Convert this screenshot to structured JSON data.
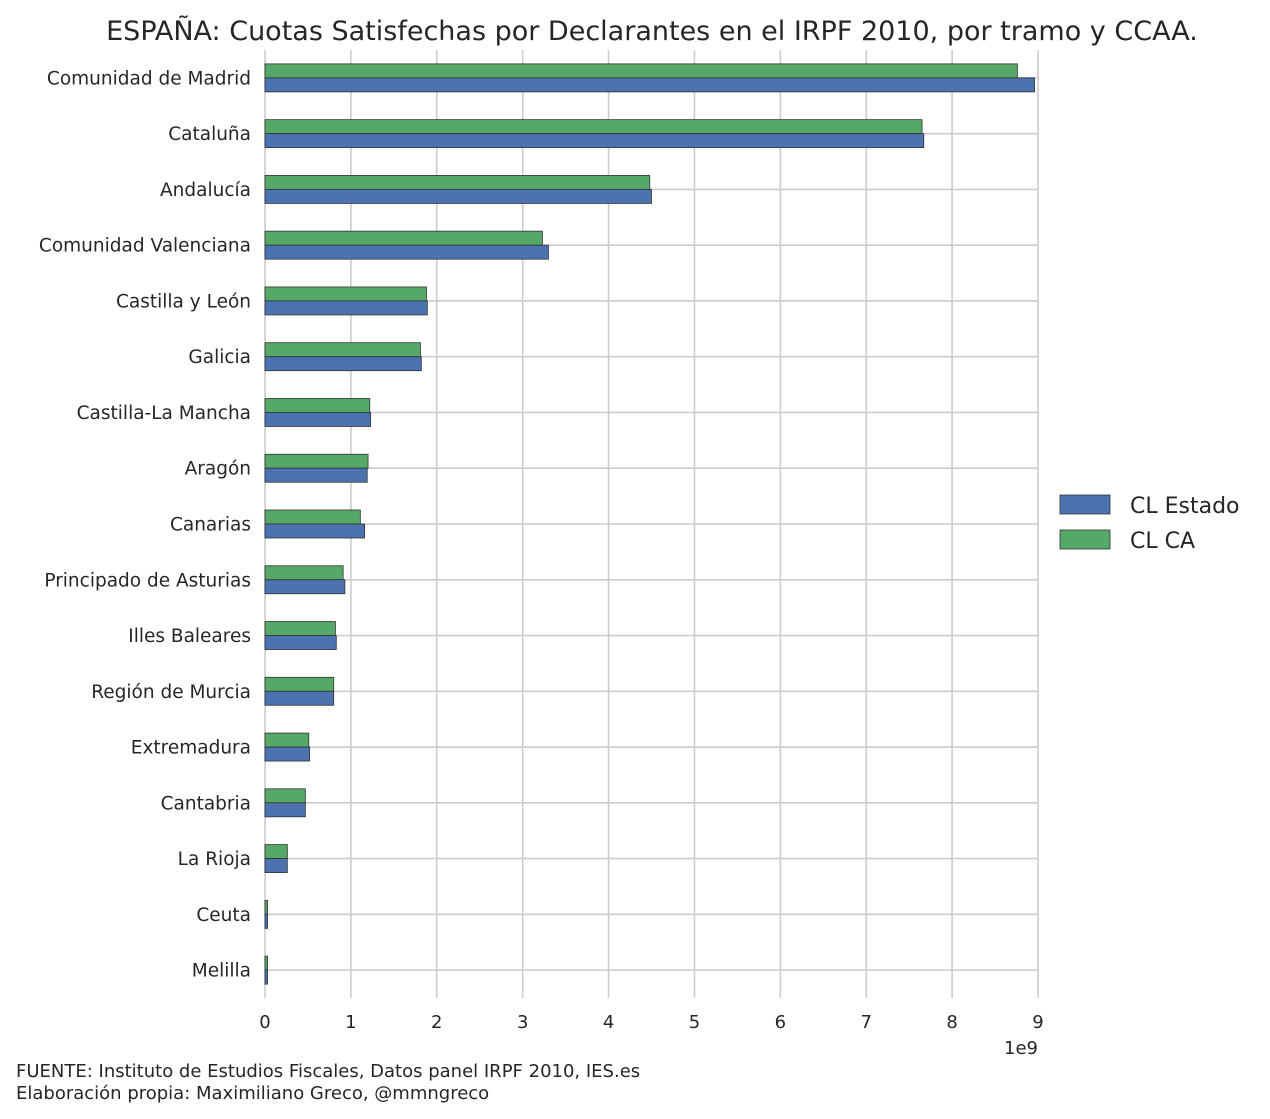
{
  "chart_data": {
    "type": "bar",
    "orientation": "horizontal",
    "title": "ESPAÑA: Cuotas Satisfechas por Declarantes en el IRPF 2010, por tramo y CCAA.",
    "xlabel": "",
    "ylabel": "",
    "x_multiplier_label": "1e9",
    "xlim": [
      0,
      9
    ],
    "xticks": [
      0,
      1,
      2,
      3,
      4,
      5,
      6,
      7,
      8,
      9
    ],
    "grid": true,
    "legend_position": "right",
    "categories": [
      "Comunidad de Madrid",
      "Cataluña",
      "Andalucía",
      "Comunidad Valenciana",
      "Castilla y León",
      "Galicia",
      "Castilla-La Mancha",
      "Aragón",
      "Canarias",
      "Principado de Asturias",
      "Illes Baleares",
      "Región de Murcia",
      "Extremadura",
      "Cantabria",
      "La Rioja",
      "Ceuta",
      "Melilla"
    ],
    "series": [
      {
        "name": "CL Estado",
        "color": "#4c72b0",
        "values": [
          8.96,
          7.67,
          4.5,
          3.3,
          1.89,
          1.82,
          1.23,
          1.19,
          1.16,
          0.93,
          0.83,
          0.8,
          0.52,
          0.47,
          0.26,
          0.03,
          0.03
        ]
      },
      {
        "name": "CL CA",
        "color": "#55a868",
        "values": [
          8.76,
          7.65,
          4.48,
          3.23,
          1.88,
          1.81,
          1.22,
          1.2,
          1.11,
          0.91,
          0.82,
          0.8,
          0.51,
          0.47,
          0.26,
          0.03,
          0.03
        ]
      }
    ]
  },
  "footer": {
    "line1": "FUENTE: Instituto de Estudios Fiscales, Datos panel IRPF 2010, IES.es",
    "line2": "Elaboración propia: Maximiliano Greco, @mmngreco"
  }
}
